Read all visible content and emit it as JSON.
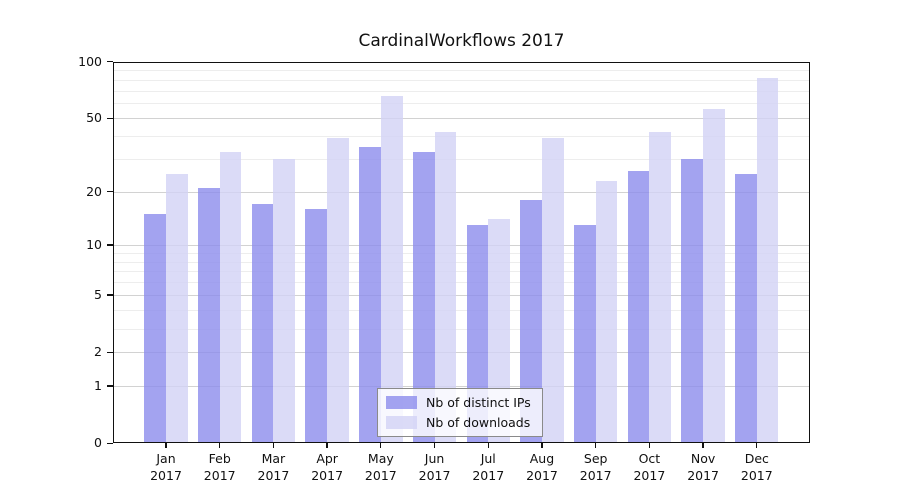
{
  "title": "CardinalWorkflows 2017",
  "chart_data": {
    "type": "bar",
    "title": "CardinalWorkflows 2017",
    "year": "2017",
    "months": [
      "Jan",
      "Feb",
      "Mar",
      "Apr",
      "May",
      "Jun",
      "Jul",
      "Aug",
      "Sep",
      "Oct",
      "Nov",
      "Dec"
    ],
    "categories": [
      "Jan 2017",
      "Feb 2017",
      "Mar 2017",
      "Apr 2017",
      "May 2017",
      "Jun 2017",
      "Jul 2017",
      "Aug 2017",
      "Sep 2017",
      "Oct 2017",
      "Nov 2017",
      "Dec 2017"
    ],
    "series": [
      {
        "name": "Nb of distinct IPs",
        "color": "#8c8cec",
        "values": [
          15,
          21,
          17,
          16,
          35,
          33,
          13,
          18,
          13,
          26,
          30,
          25
        ]
      },
      {
        "name": "Nb of downloads",
        "color": "#d2d2f5",
        "values": [
          25,
          33,
          30,
          39,
          66,
          42,
          14,
          39,
          23,
          42,
          56,
          82
        ]
      }
    ],
    "xlabel": "",
    "ylabel": "",
    "yscale": "symlog (position ~ log(1+v))",
    "ylim": [
      0,
      100
    ],
    "yticks": [
      0,
      1,
      2,
      5,
      10,
      20,
      50,
      100
    ],
    "minor_gridlines": [
      3,
      4,
      6,
      7,
      8,
      9,
      30,
      40,
      60,
      70,
      80,
      90
    ],
    "grid": "horizontal",
    "legend_position": "lower center, inside plot"
  }
}
